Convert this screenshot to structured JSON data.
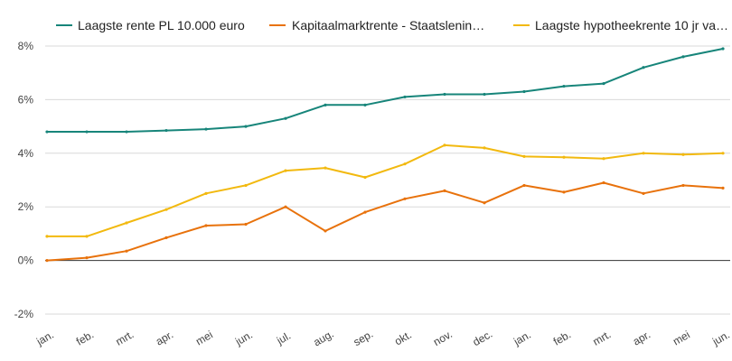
{
  "chart_data": {
    "type": "line",
    "x_labels": [
      "jan.",
      "feb.",
      "mrt.",
      "apr.",
      "mei",
      "jun.",
      "jul.",
      "aug.",
      "sep.",
      "okt.",
      "nov.",
      "dec.",
      "jan.",
      "feb.",
      "mrt.",
      "apr.",
      "mei",
      "jun."
    ],
    "y_ticks": [
      "8%",
      "6%",
      "4%",
      "2%",
      "0%",
      "-2%"
    ],
    "ylim": [
      -2,
      8
    ],
    "grid": true,
    "legend_position": "top",
    "series": [
      {
        "name": "Laagste rente PL 10.000 euro",
        "color": "#17857a",
        "values": [
          4.8,
          4.8,
          4.8,
          4.85,
          4.9,
          5.0,
          5.3,
          5.8,
          5.8,
          6.1,
          6.2,
          6.2,
          6.3,
          6.5,
          6.6,
          7.2,
          7.6,
          7.9
        ]
      },
      {
        "name": "Kapitaalmarktrente - Staatslenin…",
        "color": "#e8720c",
        "values": [
          0.0,
          0.1,
          0.35,
          0.85,
          1.3,
          1.35,
          2.0,
          1.1,
          1.8,
          2.3,
          2.6,
          2.15,
          2.8,
          2.55,
          2.9,
          2.5,
          2.8,
          2.7
        ]
      },
      {
        "name": "Laagste hypotheekrente 10 jr va…",
        "color": "#f2b90f",
        "values": [
          0.9,
          0.9,
          1.4,
          1.9,
          2.5,
          2.8,
          3.35,
          3.45,
          3.1,
          3.6,
          4.3,
          4.2,
          3.88,
          3.85,
          3.8,
          4.0,
          3.95,
          4.0
        ]
      }
    ]
  }
}
